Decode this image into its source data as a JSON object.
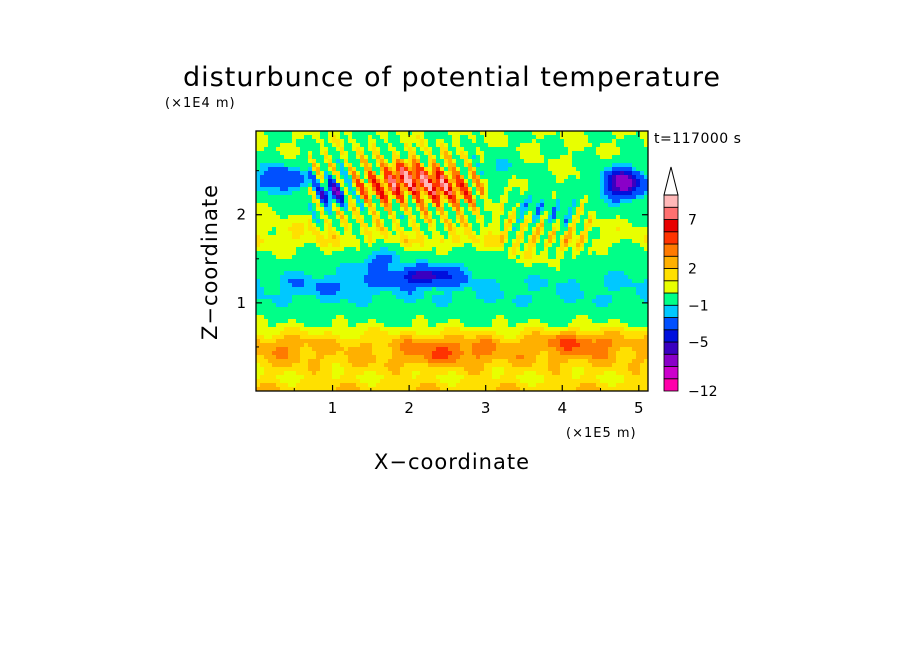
{
  "chart_data": {
    "type": "heatmap",
    "title": "disturbunce of potential temperature",
    "time_label": "t=117000 s",
    "xlabel": "X−coordinate",
    "ylabel": "Z−coordinate",
    "x_unit": "(×1E5 m)",
    "y_unit": "(×1E4 m)",
    "x_ticks": [
      "1",
      "2",
      "3",
      "4",
      "5"
    ],
    "x_tick_values": [
      1,
      2,
      3,
      4,
      5
    ],
    "y_ticks": [
      "1",
      "2"
    ],
    "y_tick_values": [
      1,
      2
    ],
    "xlim": [
      0,
      5.12
    ],
    "ylim": [
      0,
      2.95
    ],
    "colorbar": {
      "labels": [
        "−12",
        "−5",
        "−1",
        "2",
        "7"
      ],
      "label_levels": [
        -12,
        -5,
        -1,
        2,
        7
      ],
      "colors": [
        "#ff00aa",
        "#cc00cc",
        "#8a00c8",
        "#3a00c0",
        "#0010dd",
        "#0050ff",
        "#00c8ff",
        "#00ff88",
        "#e8ff00",
        "#ffe000",
        "#ffb000",
        "#ff7a00",
        "#ff3300",
        "#e80000",
        "#ff7070",
        "#ffb8b8"
      ]
    },
    "features": [
      {
        "x": 0.3,
        "y": 2.4,
        "value": -3
      },
      {
        "x": 1.0,
        "y": 2.25,
        "value": -4
      },
      {
        "x": 1.55,
        "y": 2.3,
        "value": 4
      },
      {
        "x": 2.0,
        "y": 2.4,
        "value": 7
      },
      {
        "x": 2.5,
        "y": 2.3,
        "value": 6
      },
      {
        "x": 2.2,
        "y": 1.3,
        "value": -4
      },
      {
        "x": 1.6,
        "y": 1.5,
        "value": -3
      },
      {
        "x": 4.8,
        "y": 2.35,
        "value": -7
      },
      {
        "x": 3.8,
        "y": 2.1,
        "value": -2
      },
      {
        "x": 3.7,
        "y": 1.45,
        "value": 2
      },
      {
        "x": 2.6,
        "y": 1.45,
        "value": 0
      },
      {
        "x": 1.0,
        "y": 1.2,
        "value": -1
      },
      {
        "x": 2.5,
        "y": 0.45,
        "value": 3
      },
      {
        "x": 4.2,
        "y": 0.55,
        "value": 3
      },
      {
        "x": 0.4,
        "y": 0.5,
        "value": 3
      },
      {
        "x": 1.85,
        "y": 0.4,
        "value": 2
      },
      {
        "x": 3.5,
        "y": 0.3,
        "value": 1
      }
    ]
  }
}
